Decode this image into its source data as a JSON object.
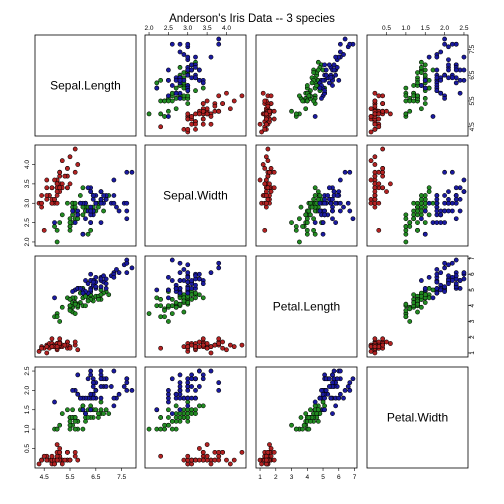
{
  "chart_data": {
    "type": "scatter",
    "title": "Anderson's Iris Data -- 3 species",
    "variables": [
      "Sepal.Length",
      "Sepal.Width",
      "Petal.Length",
      "Petal.Width"
    ],
    "ranges": [
      [
        4.3,
        7.9
      ],
      [
        2.0,
        4.4
      ],
      [
        1.0,
        6.9
      ],
      [
        0.1,
        2.5
      ]
    ],
    "ticks": [
      [
        "4.5",
        "5.5",
        "6.5",
        "7.5"
      ],
      [
        "2.0",
        "2.5",
        "3.0",
        "3.5",
        "4.0"
      ],
      [
        "1",
        "2",
        "3",
        "4",
        "5",
        "6",
        "7"
      ],
      [
        "0.5",
        "1.0",
        "1.5",
        "2.0",
        "2.5"
      ]
    ],
    "colors": [
      "#b22222",
      "#228b22",
      "#1a1aa0"
    ],
    "series": [
      {
        "values": [
          [
            5.1,
            3.5,
            1.4,
            0.2
          ],
          [
            4.9,
            3.0,
            1.4,
            0.2
          ],
          [
            4.7,
            3.2,
            1.3,
            0.2
          ],
          [
            4.6,
            3.1,
            1.5,
            0.2
          ],
          [
            5.0,
            3.6,
            1.4,
            0.2
          ],
          [
            5.4,
            3.9,
            1.7,
            0.4
          ],
          [
            4.6,
            3.4,
            1.4,
            0.3
          ],
          [
            5.0,
            3.4,
            1.5,
            0.2
          ],
          [
            4.4,
            2.9,
            1.4,
            0.2
          ],
          [
            4.9,
            3.1,
            1.5,
            0.1
          ],
          [
            5.4,
            3.7,
            1.5,
            0.2
          ],
          [
            4.8,
            3.4,
            1.6,
            0.2
          ],
          [
            4.8,
            3.0,
            1.4,
            0.1
          ],
          [
            4.3,
            3.0,
            1.1,
            0.1
          ],
          [
            5.8,
            4.0,
            1.2,
            0.2
          ],
          [
            5.7,
            4.4,
            1.5,
            0.4
          ],
          [
            5.4,
            3.9,
            1.3,
            0.4
          ],
          [
            5.1,
            3.5,
            1.4,
            0.3
          ],
          [
            5.7,
            3.8,
            1.7,
            0.3
          ],
          [
            5.1,
            3.8,
            1.5,
            0.3
          ],
          [
            5.4,
            3.4,
            1.7,
            0.2
          ],
          [
            5.1,
            3.7,
            1.5,
            0.4
          ],
          [
            4.6,
            3.6,
            1.0,
            0.2
          ],
          [
            5.1,
            3.3,
            1.7,
            0.5
          ],
          [
            4.8,
            3.4,
            1.9,
            0.2
          ],
          [
            5.0,
            3.0,
            1.6,
            0.2
          ],
          [
            5.0,
            3.4,
            1.6,
            0.4
          ],
          [
            5.2,
            3.5,
            1.5,
            0.2
          ],
          [
            5.2,
            3.4,
            1.4,
            0.2
          ],
          [
            4.7,
            3.2,
            1.6,
            0.2
          ],
          [
            4.8,
            3.1,
            1.6,
            0.2
          ],
          [
            5.4,
            3.4,
            1.5,
            0.4
          ],
          [
            5.2,
            4.1,
            1.5,
            0.1
          ],
          [
            5.5,
            4.2,
            1.4,
            0.2
          ],
          [
            4.9,
            3.1,
            1.5,
            0.2
          ],
          [
            5.0,
            3.2,
            1.2,
            0.2
          ],
          [
            5.5,
            3.5,
            1.3,
            0.2
          ],
          [
            4.9,
            3.6,
            1.4,
            0.1
          ],
          [
            4.4,
            3.0,
            1.3,
            0.2
          ],
          [
            5.1,
            3.4,
            1.5,
            0.2
          ],
          [
            5.0,
            3.5,
            1.3,
            0.3
          ],
          [
            4.5,
            2.3,
            1.3,
            0.3
          ],
          [
            4.4,
            3.2,
            1.3,
            0.2
          ],
          [
            5.0,
            3.5,
            1.6,
            0.6
          ],
          [
            5.1,
            3.8,
            1.9,
            0.4
          ],
          [
            4.8,
            3.0,
            1.4,
            0.3
          ],
          [
            5.1,
            3.8,
            1.6,
            0.2
          ],
          [
            4.6,
            3.2,
            1.4,
            0.2
          ],
          [
            5.3,
            3.7,
            1.5,
            0.2
          ],
          [
            5.0,
            3.3,
            1.4,
            0.2
          ]
        ]
      },
      {
        "values": [
          [
            7.0,
            3.2,
            4.7,
            1.4
          ],
          [
            6.4,
            3.2,
            4.5,
            1.5
          ],
          [
            6.9,
            3.1,
            4.9,
            1.5
          ],
          [
            5.5,
            2.3,
            4.0,
            1.3
          ],
          [
            6.5,
            2.8,
            4.6,
            1.5
          ],
          [
            5.7,
            2.8,
            4.5,
            1.3
          ],
          [
            6.3,
            3.3,
            4.7,
            1.6
          ],
          [
            4.9,
            2.4,
            3.3,
            1.0
          ],
          [
            6.6,
            2.9,
            4.6,
            1.3
          ],
          [
            5.2,
            2.7,
            3.9,
            1.4
          ],
          [
            5.0,
            2.0,
            3.5,
            1.0
          ],
          [
            5.9,
            3.0,
            4.2,
            1.5
          ],
          [
            6.0,
            2.2,
            4.0,
            1.0
          ],
          [
            6.1,
            2.9,
            4.7,
            1.4
          ],
          [
            5.6,
            2.9,
            3.6,
            1.3
          ],
          [
            6.7,
            3.1,
            4.4,
            1.4
          ],
          [
            5.6,
            3.0,
            4.5,
            1.5
          ],
          [
            5.8,
            2.7,
            4.1,
            1.0
          ],
          [
            6.2,
            2.2,
            4.5,
            1.5
          ],
          [
            5.6,
            2.5,
            3.9,
            1.1
          ],
          [
            5.9,
            3.2,
            4.8,
            1.8
          ],
          [
            6.1,
            2.8,
            4.0,
            1.3
          ],
          [
            6.3,
            2.5,
            4.9,
            1.5
          ],
          [
            6.1,
            2.8,
            4.7,
            1.2
          ],
          [
            6.4,
            2.9,
            4.3,
            1.3
          ],
          [
            6.6,
            3.0,
            4.4,
            1.4
          ],
          [
            6.8,
            2.8,
            4.8,
            1.4
          ],
          [
            6.7,
            3.0,
            5.0,
            1.7
          ],
          [
            6.0,
            2.9,
            4.5,
            1.5
          ],
          [
            5.7,
            2.6,
            3.5,
            1.0
          ],
          [
            5.5,
            2.4,
            3.8,
            1.1
          ],
          [
            5.5,
            2.4,
            3.7,
            1.0
          ],
          [
            5.8,
            2.7,
            3.9,
            1.2
          ],
          [
            6.0,
            2.7,
            5.1,
            1.6
          ],
          [
            5.4,
            3.0,
            4.5,
            1.5
          ],
          [
            6.0,
            3.4,
            4.5,
            1.6
          ],
          [
            6.7,
            3.1,
            4.7,
            1.5
          ],
          [
            6.3,
            2.3,
            4.4,
            1.3
          ],
          [
            5.6,
            3.0,
            4.1,
            1.3
          ],
          [
            5.5,
            2.5,
            4.0,
            1.3
          ],
          [
            5.5,
            2.6,
            4.4,
            1.2
          ],
          [
            6.1,
            3.0,
            4.6,
            1.4
          ],
          [
            5.8,
            2.6,
            4.0,
            1.2
          ],
          [
            5.0,
            2.3,
            3.3,
            1.0
          ],
          [
            5.6,
            2.7,
            4.2,
            1.3
          ],
          [
            5.7,
            3.0,
            4.2,
            1.2
          ],
          [
            5.7,
            2.9,
            4.2,
            1.3
          ],
          [
            6.2,
            2.9,
            4.3,
            1.3
          ],
          [
            5.1,
            2.5,
            3.0,
            1.1
          ],
          [
            5.7,
            2.8,
            4.1,
            1.3
          ]
        ]
      },
      {
        "values": [
          [
            6.3,
            3.3,
            6.0,
            2.5
          ],
          [
            5.8,
            2.7,
            5.1,
            1.9
          ],
          [
            7.1,
            3.0,
            5.9,
            2.1
          ],
          [
            6.3,
            2.9,
            5.6,
            1.8
          ],
          [
            6.5,
            3.0,
            5.8,
            2.2
          ],
          [
            7.6,
            3.0,
            6.6,
            2.1
          ],
          [
            4.9,
            2.5,
            4.5,
            1.7
          ],
          [
            7.3,
            2.9,
            6.3,
            1.8
          ],
          [
            6.7,
            2.5,
            5.8,
            1.8
          ],
          [
            7.2,
            3.6,
            6.1,
            2.5
          ],
          [
            6.5,
            3.2,
            5.1,
            2.0
          ],
          [
            6.4,
            2.7,
            5.3,
            1.9
          ],
          [
            6.8,
            3.0,
            5.5,
            2.1
          ],
          [
            5.7,
            2.5,
            5.0,
            2.0
          ],
          [
            5.8,
            2.8,
            5.1,
            2.4
          ],
          [
            6.4,
            3.2,
            5.3,
            2.3
          ],
          [
            6.5,
            3.0,
            5.5,
            1.8
          ],
          [
            7.7,
            3.8,
            6.7,
            2.2
          ],
          [
            7.7,
            2.6,
            6.9,
            2.3
          ],
          [
            6.0,
            2.2,
            5.0,
            1.5
          ],
          [
            6.9,
            3.2,
            5.7,
            2.3
          ],
          [
            5.6,
            2.8,
            4.9,
            2.0
          ],
          [
            7.7,
            2.8,
            6.7,
            2.0
          ],
          [
            6.3,
            2.7,
            4.9,
            1.8
          ],
          [
            6.7,
            3.3,
            5.7,
            2.1
          ],
          [
            7.2,
            3.2,
            6.0,
            1.8
          ],
          [
            6.2,
            2.8,
            4.8,
            1.8
          ],
          [
            6.1,
            3.0,
            4.9,
            1.8
          ],
          [
            6.4,
            2.8,
            5.6,
            2.1
          ],
          [
            7.2,
            3.0,
            5.8,
            1.6
          ],
          [
            7.4,
            2.8,
            6.1,
            1.9
          ],
          [
            7.9,
            3.8,
            6.4,
            2.0
          ],
          [
            6.4,
            2.8,
            5.6,
            2.2
          ],
          [
            6.3,
            2.8,
            5.1,
            1.5
          ],
          [
            6.1,
            2.6,
            5.6,
            1.4
          ],
          [
            7.7,
            3.0,
            6.1,
            2.3
          ],
          [
            6.3,
            3.4,
            5.6,
            2.4
          ],
          [
            6.4,
            3.1,
            5.5,
            1.8
          ],
          [
            6.0,
            3.0,
            4.8,
            1.8
          ],
          [
            6.9,
            3.1,
            5.4,
            2.1
          ],
          [
            6.7,
            3.1,
            5.6,
            2.4
          ],
          [
            6.9,
            3.1,
            5.1,
            2.3
          ],
          [
            5.8,
            2.7,
            5.1,
            1.9
          ],
          [
            6.8,
            3.2,
            5.9,
            2.3
          ],
          [
            6.7,
            3.3,
            5.7,
            2.5
          ],
          [
            6.7,
            3.0,
            5.2,
            2.3
          ],
          [
            6.3,
            2.5,
            5.0,
            1.9
          ],
          [
            6.5,
            3.0,
            5.2,
            2.0
          ],
          [
            6.2,
            3.4,
            5.4,
            2.3
          ],
          [
            5.9,
            3.0,
            5.1,
            1.8
          ]
        ]
      }
    ]
  }
}
